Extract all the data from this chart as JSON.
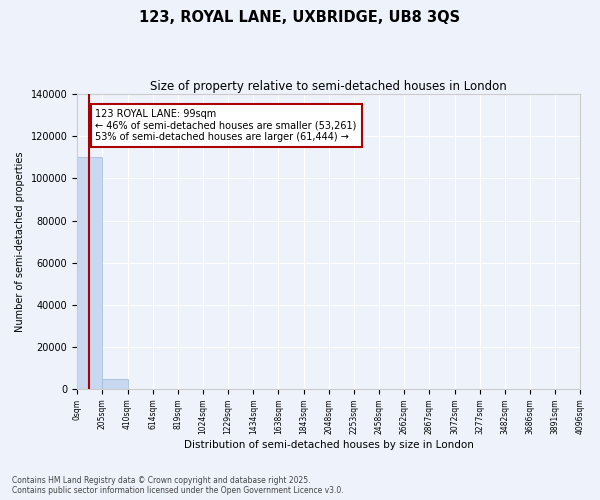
{
  "title": "123, ROYAL LANE, UXBRIDGE, UB8 3QS",
  "subtitle": "Size of property relative to semi-detached houses in London",
  "xlabel": "Distribution of semi-detached houses by size in London",
  "ylabel": "Number of semi-detached properties",
  "property_size": 99,
  "property_label": "123 ROYAL LANE: 99sqm",
  "pct_smaller": 46,
  "pct_larger": 53,
  "n_smaller": 53261,
  "n_larger": 61444,
  "bar_color": "#c8d8f0",
  "bar_edge_color": "#a0b8d8",
  "vline_color": "#aa0000",
  "annotation_box_color": "#aa0000",
  "background_color": "#eef2fb",
  "grid_color": "#ffffff",
  "bin_edges": [
    0,
    205,
    410,
    614,
    819,
    1024,
    1229,
    1434,
    1638,
    1843,
    2048,
    2253,
    2458,
    2662,
    2867,
    3072,
    3277,
    3482,
    3686,
    3891,
    4096
  ],
  "bin_counts": [
    110000,
    4800,
    0,
    0,
    0,
    0,
    0,
    0,
    0,
    0,
    0,
    0,
    0,
    0,
    0,
    0,
    0,
    0,
    0,
    0
  ],
  "ylim": [
    0,
    140000
  ],
  "yticks": [
    0,
    20000,
    40000,
    60000,
    80000,
    100000,
    120000,
    140000
  ],
  "footer_line1": "Contains HM Land Registry data © Crown copyright and database right 2025.",
  "footer_line2": "Contains public sector information licensed under the Open Government Licence v3.0."
}
